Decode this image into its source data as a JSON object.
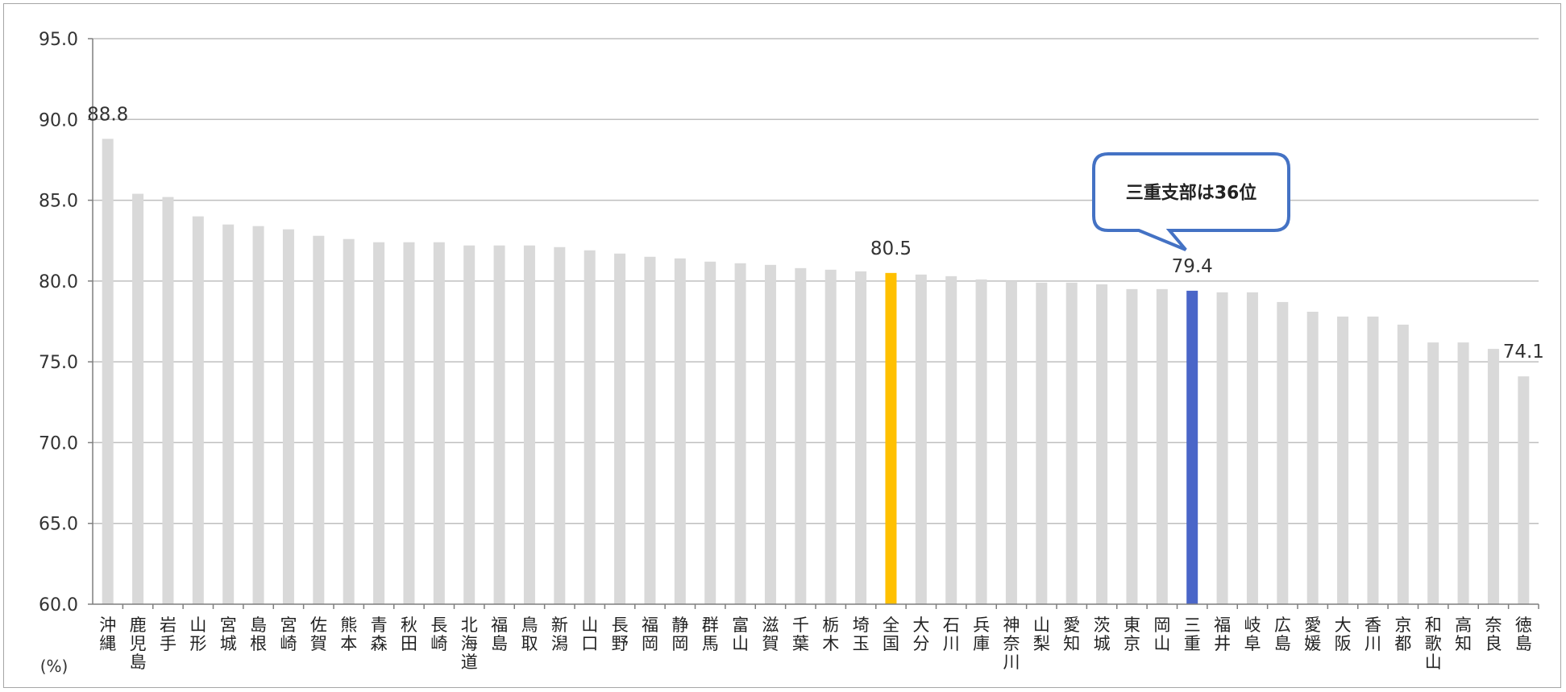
{
  "chart_data": {
    "type": "bar",
    "ylabel": "(%)",
    "ylim": [
      60,
      95
    ],
    "yticks": [
      "60.0",
      "65.0",
      "70.0",
      "75.0",
      "80.0",
      "85.0",
      "90.0",
      "95.0"
    ],
    "grid": true,
    "categories": [
      "沖縄",
      "鹿児島",
      "岩手",
      "山形",
      "宮城",
      "島根",
      "宮崎",
      "佐賀",
      "熊本",
      "青森",
      "秋田",
      "長崎",
      "北海道",
      "福島",
      "鳥取",
      "新潟",
      "山口",
      "長野",
      "福岡",
      "静岡",
      "群馬",
      "富山",
      "滋賀",
      "千葉",
      "栃木",
      "埼玉",
      "全国",
      "大分",
      "石川",
      "兵庫",
      "神奈川",
      "山梨",
      "愛知",
      "茨城",
      "東京",
      "岡山",
      "三重",
      "福井",
      "岐阜",
      "広島",
      "愛媛",
      "大阪",
      "香川",
      "京都",
      "和歌山",
      "高知",
      "奈良",
      "徳島"
    ],
    "values": [
      88.8,
      85.4,
      85.2,
      84.0,
      83.5,
      83.4,
      83.2,
      82.8,
      82.6,
      82.4,
      82.4,
      82.4,
      82.2,
      82.2,
      82.2,
      82.1,
      81.9,
      81.7,
      81.5,
      81.4,
      81.2,
      81.1,
      81.0,
      80.8,
      80.7,
      80.6,
      80.5,
      80.4,
      80.3,
      80.1,
      80.0,
      79.9,
      79.9,
      79.8,
      79.5,
      79.5,
      79.4,
      79.3,
      79.3,
      78.7,
      78.1,
      77.8,
      77.8,
      77.3,
      76.2,
      76.2,
      75.8,
      74.1
    ],
    "data_labels": [
      {
        "category": "沖縄",
        "text": "88.8"
      },
      {
        "category": "全国",
        "text": "80.5"
      },
      {
        "category": "三重",
        "text": "79.4"
      },
      {
        "category": "徳島",
        "text": "74.1"
      }
    ],
    "annotation": {
      "category": "三重",
      "text": "三重支部は36位"
    },
    "colors": {
      "default": "#d9d9d9",
      "全国": "#ffc000",
      "三重": "#4a66c8",
      "grid": "#bfbfbf",
      "axis": "#7f7f7f",
      "callout_border": "#4472c4"
    }
  }
}
